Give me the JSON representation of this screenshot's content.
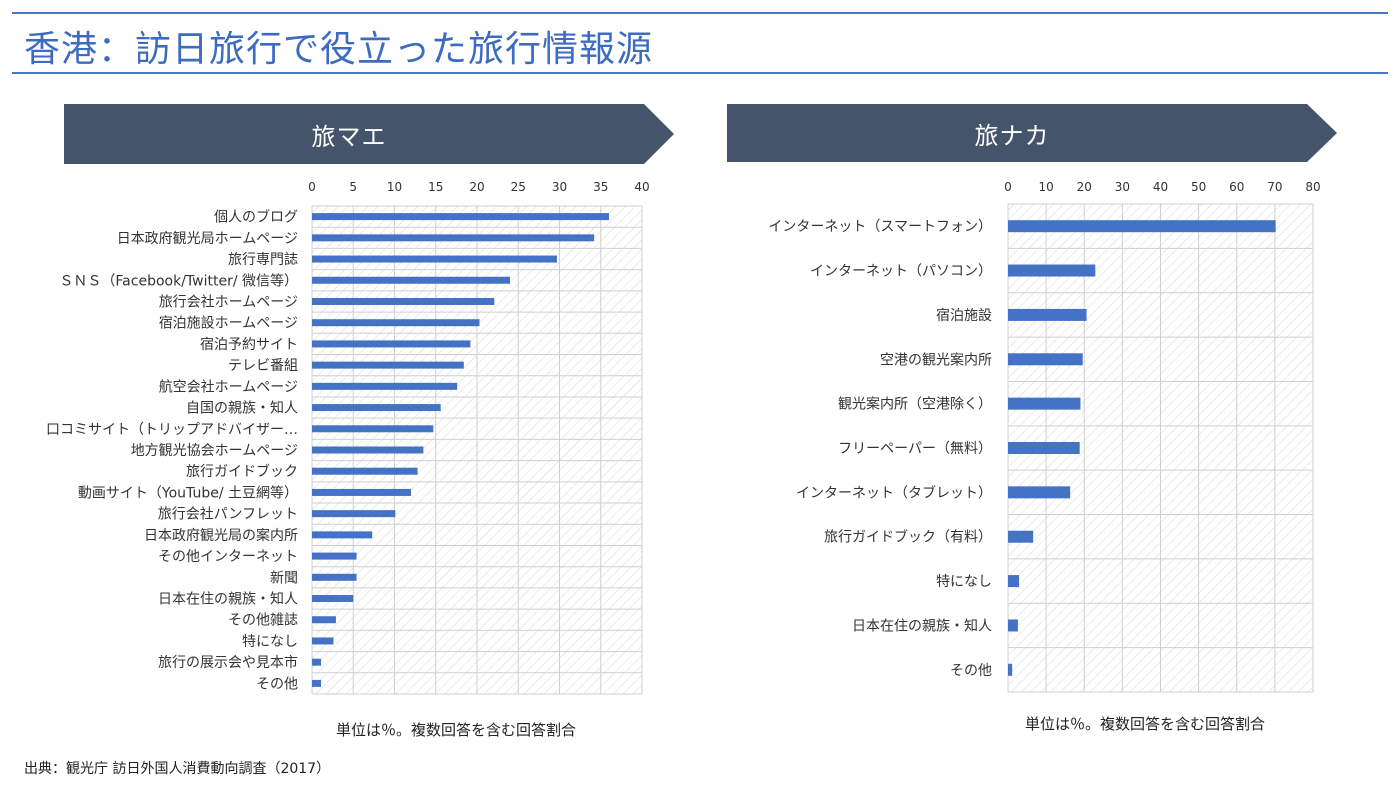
{
  "page": {
    "title": "香港：訪日旅行で役立った旅行情報源",
    "source": "出典：観光庁 訪日外国人消費動向調査（2017）"
  },
  "colors": {
    "accent": "#3d6bbf",
    "banner": "#44546a",
    "bar": "#4472c4",
    "grid": "#cfcfcf"
  },
  "panels": [
    {
      "banner_label": "旅マエ",
      "note": "単位は％。複数回答を含む回答割合"
    },
    {
      "banner_label": "旅ナカ",
      "note": "単位は％。複数回答を含む回答割合"
    }
  ],
  "chart_data": [
    {
      "type": "bar",
      "orientation": "horizontal",
      "categories": [
        "個人のブログ",
        "日本政府観光局ホームページ",
        "旅行専門誌",
        "ＳＮＳ（Facebook/Twitter/ 微信等）",
        "旅行会社ホームページ",
        "宿泊施設ホームページ",
        "宿泊予約サイト",
        "テレビ番組",
        "航空会社ホームページ",
        "自国の親族・知人",
        "口コミサイト（トリップアドバイザー…",
        "地方観光協会ホームページ",
        "旅行ガイドブック",
        "動画サイト（YouTube/ 土豆網等）",
        "旅行会社パンフレット",
        "日本政府観光局の案内所",
        "その他インターネット",
        "新聞",
        "日本在住の親族・知人",
        "その他雑誌",
        "特になし",
        "旅行の展示会や見本市",
        "その他"
      ],
      "values": [
        36.0,
        34.2,
        29.7,
        24.0,
        22.1,
        20.3,
        19.2,
        18.4,
        17.6,
        15.6,
        14.7,
        13.5,
        12.8,
        12.0,
        10.1,
        7.3,
        5.4,
        5.4,
        5.0,
        2.9,
        2.6,
        1.1,
        1.1
      ],
      "xlim": [
        0,
        40
      ],
      "xticks": [
        "0",
        "5",
        "10",
        "15",
        "20",
        "25",
        "30",
        "35",
        "40"
      ],
      "grid": true
    },
    {
      "type": "bar",
      "orientation": "horizontal",
      "categories": [
        "インターネット（スマートフォン）",
        "インターネット（パソコン）",
        "宿泊施設",
        "空港の観光案内所",
        "観光案内所（空港除く）",
        "フリーペーパー（無料）",
        "インターネット（タブレット）",
        "旅行ガイドブック（有料）",
        "特になし",
        "日本在住の親族・知人",
        "その他"
      ],
      "values": [
        70.2,
        22.9,
        20.6,
        19.6,
        19.0,
        18.8,
        16.3,
        6.6,
        2.9,
        2.6,
        1.1
      ],
      "xlim": [
        0,
        80
      ],
      "xticks": [
        "0",
        "10",
        "20",
        "30",
        "40",
        "50",
        "60",
        "70",
        "80"
      ],
      "grid": true
    }
  ]
}
